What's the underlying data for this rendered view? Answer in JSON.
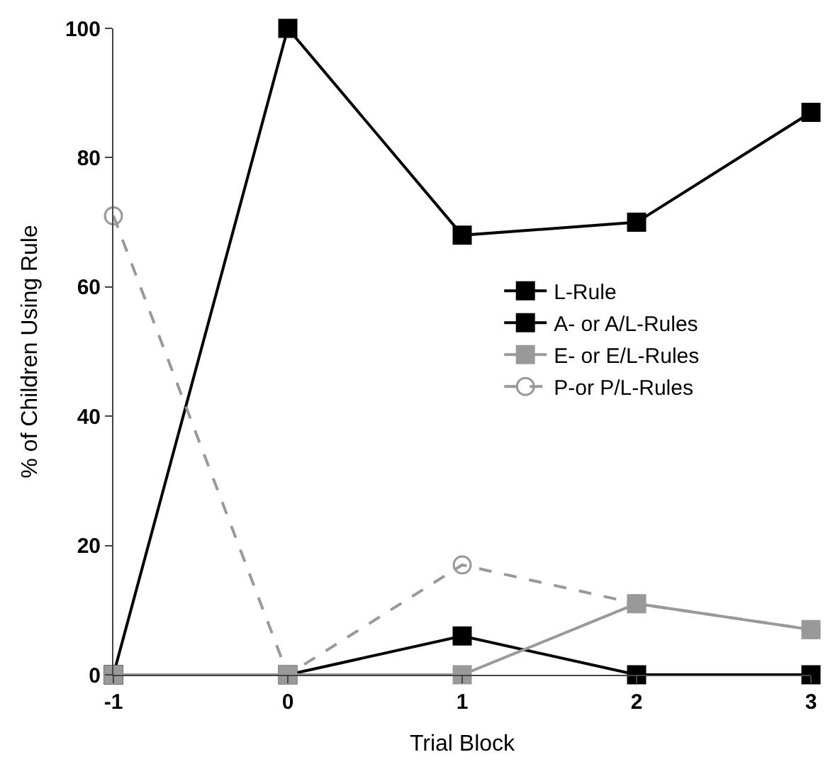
{
  "chart_data": {
    "type": "line",
    "xlabel": "Trial Block",
    "ylabel": "% of Children Using Rule",
    "x": [
      -1,
      0,
      1,
      2,
      3
    ],
    "xlim": [
      -1,
      3
    ],
    "xticks": [
      -1,
      0,
      1,
      2,
      3
    ],
    "ylim": [
      0,
      100
    ],
    "yticks": [
      0,
      20,
      40,
      60,
      80,
      100
    ],
    "legend": "right",
    "series": [
      {
        "name": "L-Rule",
        "color": "#000000",
        "marker": "square",
        "line_style": "solid",
        "values": [
          0,
          100,
          68,
          70,
          87
        ]
      },
      {
        "name": "A- or A/L-Rules",
        "color": "#000000",
        "marker": "square",
        "line_style": "solid",
        "values": [
          0,
          0,
          6,
          0,
          0
        ]
      },
      {
        "name": "E- or E/L-Rules",
        "color": "#999999",
        "marker": "square",
        "line_style": "solid",
        "values": [
          0,
          0,
          0,
          11,
          7
        ]
      },
      {
        "name": "P-or P/L-Rules",
        "color": "#999999",
        "marker": "circle",
        "line_style": "dashed",
        "values": [
          71,
          0,
          17,
          11,
          7
        ]
      }
    ]
  }
}
